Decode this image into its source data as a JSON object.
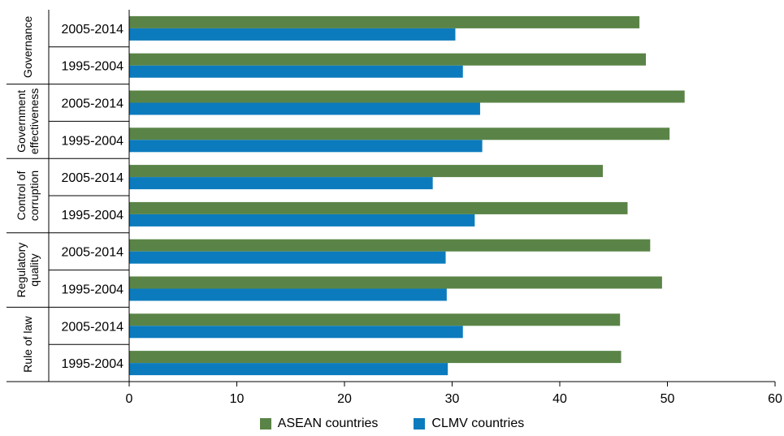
{
  "chart_data": {
    "type": "bar",
    "orientation": "horizontal",
    "groups": [
      "Governance",
      "Government effectiveness",
      "Control of corruption",
      "Regulatory quality",
      "Rule of law"
    ],
    "categories": [
      "2005-2014",
      "1995-2004"
    ],
    "series": [
      {
        "name": "ASEAN countries",
        "color": "#5a8447",
        "values": [
          [
            47.4,
            48.0
          ],
          [
            51.6,
            50.2
          ],
          [
            44.0,
            46.3
          ],
          [
            48.4,
            49.5
          ],
          [
            45.6,
            45.7
          ]
        ]
      },
      {
        "name": "CLMV countries",
        "color": "#0c7bbd",
        "values": [
          [
            30.3,
            31.0
          ],
          [
            32.6,
            32.8
          ],
          [
            28.2,
            32.1
          ],
          [
            29.4,
            29.5
          ],
          [
            31.0,
            29.6
          ]
        ]
      }
    ],
    "xlim": [
      0,
      60
    ],
    "xticks": [
      "0",
      "10",
      "20",
      "30",
      "40",
      "50",
      "60"
    ],
    "grid": false,
    "legend_position": "bottom"
  }
}
